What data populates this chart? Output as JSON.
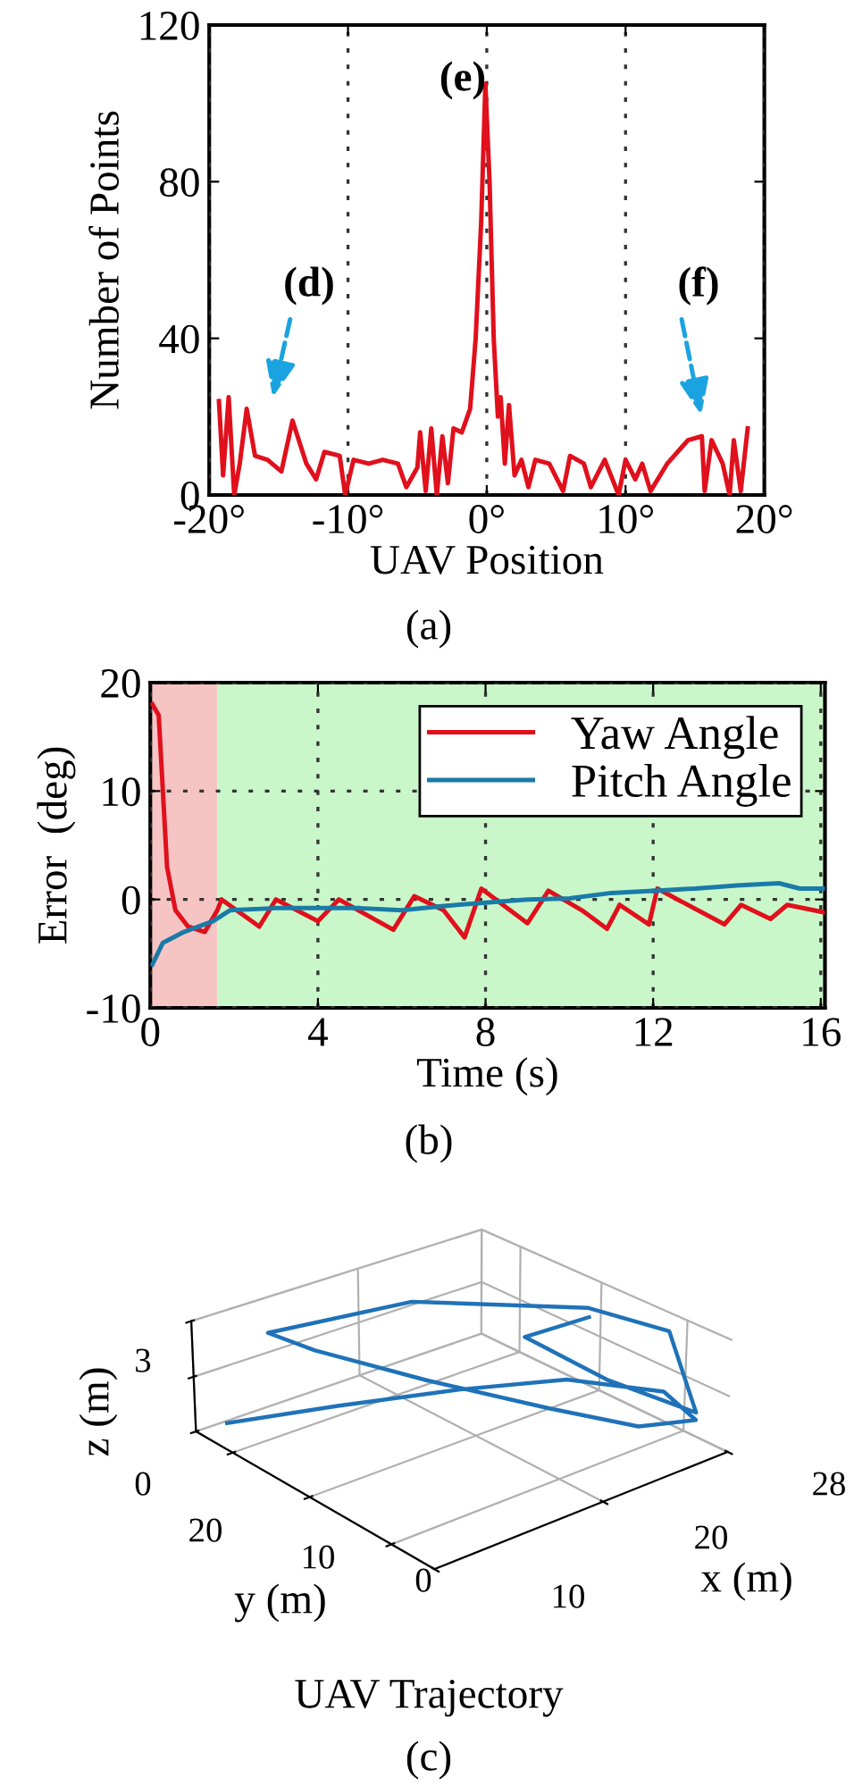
{
  "chart_data": [
    {
      "type": "line",
      "xlabel": "UAV Position",
      "ylabel": "Number of Points",
      "annotations": [
        "(d)",
        "(e)",
        "(f)",
        "(a)"
      ],
      "x": [
        -19.3,
        -19.0,
        -18.6,
        -18.2,
        -17.8,
        -17.3,
        -16.7,
        -15.8,
        -14.8,
        -14.0,
        -13.0,
        -12.3,
        -11.7,
        -10.6,
        -10.2,
        -9.6,
        -8.5,
        -7.5,
        -6.4,
        -5.8,
        -5.0,
        -4.8,
        -4.4,
        -4.0,
        -3.6,
        -3.2,
        -2.8,
        -2.4,
        -1.8,
        -1.2,
        -0.8,
        -0.4,
        -0.1,
        0.2,
        0.5,
        0.8,
        1.0,
        1.3,
        1.6,
        2.0,
        2.5,
        3.0,
        3.5,
        4.5,
        5.5,
        6.0,
        7.0,
        7.5,
        8.5,
        9.5,
        10.0,
        10.7,
        11.2,
        11.8,
        13.0,
        14.5,
        15.5,
        15.7,
        16.2,
        17.0,
        17.5,
        17.8,
        18.3,
        18.8
      ],
      "series": [
        {
          "color": "#e0101c",
          "values": [
            24,
            5,
            25,
            0,
            8,
            22,
            10,
            9,
            6,
            19,
            8,
            4,
            11,
            10,
            0,
            9,
            8,
            9,
            8,
            2,
            7,
            16,
            1,
            17,
            0,
            15,
            3,
            17,
            16,
            22,
            40,
            70,
            105,
            80,
            40,
            20,
            25,
            8,
            23,
            5,
            9,
            2,
            9,
            8,
            1,
            10,
            8,
            2,
            9,
            0,
            9,
            4,
            8,
            1,
            8,
            14,
            15,
            1,
            14,
            8,
            0,
            14,
            1,
            17
          ]
        }
      ],
      "xlim": [
        -20,
        20
      ],
      "xticks": [
        {
          "value": -20,
          "label": "-20°"
        },
        {
          "value": -10,
          "label": "-10°"
        },
        {
          "value": 0,
          "label": "0°"
        },
        {
          "value": 10,
          "label": "10°"
        },
        {
          "value": 20,
          "label": "20°"
        }
      ],
      "ylim": [
        0,
        120
      ],
      "yticks": [
        0,
        40,
        80,
        120
      ],
      "grid": "x",
      "line_style": "solid"
    },
    {
      "type": "line",
      "xlabel": "Time (s)",
      "ylabel": "Error  (deg)",
      "annotations": [
        "(b)"
      ],
      "legend": "top right",
      "grid": true,
      "series": [
        {
          "name": "Yaw Angle",
          "color": "#e0101c",
          "x": [
            0.05,
            0.2,
            0.4,
            0.6,
            0.9,
            1.3,
            1.6,
            1.7,
            2.6,
            3.0,
            4.0,
            4.5,
            5.8,
            6.3,
            7.0,
            7.5,
            7.9,
            9.0,
            9.5,
            10.3,
            10.9,
            11.2,
            11.9,
            12.1,
            13.7,
            14.1,
            14.8,
            15.2,
            16.1
          ],
          "values": [
            18,
            17,
            3,
            -1,
            -2.5,
            -3,
            -1,
            0,
            -2.5,
            0,
            -2,
            0,
            -2.8,
            0.3,
            -1,
            -3.5,
            1,
            -2.2,
            0.8,
            -1,
            -2.7,
            -0.5,
            -2.3,
            1,
            -2.3,
            -0.5,
            -1.8,
            -0.5,
            -1.2
          ]
        },
        {
          "name": "Pitch Angle",
          "color": "#1a7aa8",
          "x": [
            0.05,
            0.3,
            0.8,
            1.5,
            1.9,
            3,
            5,
            6,
            7,
            8,
            9,
            10,
            11,
            12,
            13,
            14,
            15,
            15.5,
            16.1
          ],
          "values": [
            -6,
            -4,
            -3,
            -2,
            -1,
            -0.8,
            -0.8,
            -1,
            -0.6,
            -0.3,
            0,
            0.1,
            0.6,
            0.8,
            1,
            1.3,
            1.5,
            1,
            1
          ]
        }
      ],
      "bands": [
        {
          "axis": "x",
          "from": 0,
          "to": 1.6,
          "color": "#f7c4c4"
        },
        {
          "axis": "x",
          "from": 1.6,
          "to": 16.1,
          "color": "#c9f7c9"
        }
      ],
      "xlim": [
        0,
        16.1
      ],
      "xticks": [
        0,
        4,
        8,
        12,
        16
      ],
      "ylim": [
        -10,
        20
      ],
      "yticks": [
        -10,
        0,
        10,
        20
      ]
    },
    {
      "type": "other",
      "title": "UAV Trajectory",
      "annotations": [
        "z (m)",
        "3",
        "0",
        "20",
        "10",
        "0",
        "y (m)",
        "10",
        "20",
        "28",
        "x (m)",
        "(c)"
      ]
    }
  ]
}
